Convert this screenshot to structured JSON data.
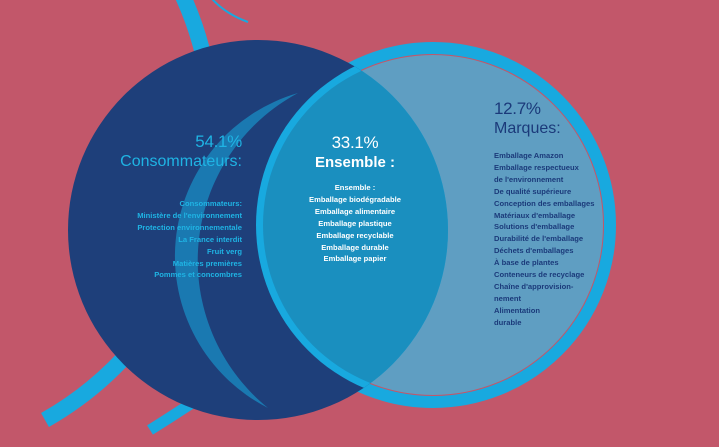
{
  "colors": {
    "background": "#c2576a",
    "consumers_circle": "#1e3f7a",
    "brands_circle": "#5f9ec2",
    "overlap": "#1a8fbf",
    "ring": "#18a9df",
    "consumers_text": "#1fb4e4",
    "overlap_text": "#ffffff",
    "brands_text": "#1b3a7a"
  },
  "consumers": {
    "percent": "54.1%",
    "title": "Consommateurs:",
    "items": [
      "Consommateurs:",
      "Ministère de l'environnement",
      "Protection environnementale",
      "La France interdit",
      "Fruit verg",
      "Matières premières",
      "Pommes et concombres"
    ]
  },
  "overlap": {
    "percent": "33.1%",
    "title": "Ensemble :",
    "items": [
      "Ensemble :",
      "Emballage biodégradable",
      "Emballage alimentaire",
      "Emballage plastique",
      "Emballage recyclable",
      "Emballage durable",
      "Emballage papier"
    ]
  },
  "brands": {
    "percent": "12.7%",
    "title": "Marques:",
    "items": [
      "Emballage Amazon",
      "Emballage respectueux",
      "de l'environnement",
      "De qualité supérieure",
      "Conception des emballages",
      "Matériaux d'emballage",
      "Solutions d'emballage",
      "Durabilité de l'emballage",
      "Déchets d'emballages",
      "À base de plantes",
      "Conteneurs de recyclage",
      "Chaîne d'approvision-",
      "nement",
      "Alimentation",
      "durable"
    ]
  }
}
